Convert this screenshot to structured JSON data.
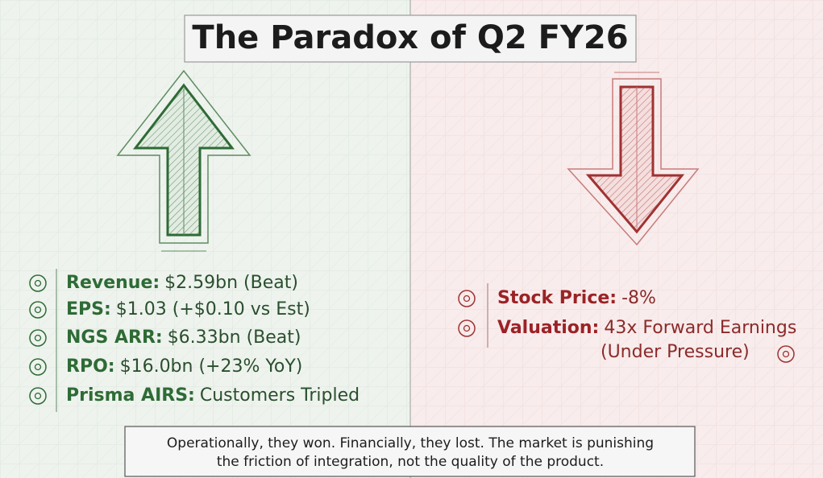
{
  "title": "The Paradox of Q2 FY26",
  "wins": [
    {
      "label": "Revenue:",
      "value": "$2.59bn (Beat)"
    },
    {
      "label": "EPS:",
      "value": "$1.03 (+$0.10 vs Est)"
    },
    {
      "label": "NGS ARR:",
      "value": "$6.33bn (Beat)"
    },
    {
      "label": "RPO:",
      "value": "$16.0bn (+23% YoY)"
    },
    {
      "label": "Prisma AIRS:",
      "value": "Customers Tripled"
    }
  ],
  "losses": [
    {
      "label": "Stock Price:",
      "value": "-8%"
    },
    {
      "label": "Valuation:",
      "value": "43x Forward Earnings",
      "note": "(Under Pressure)"
    }
  ],
  "footer": [
    "Operationally, they won. Financially, they lost. The market is punishing",
    "the friction of integration, not the quality of the product."
  ]
}
